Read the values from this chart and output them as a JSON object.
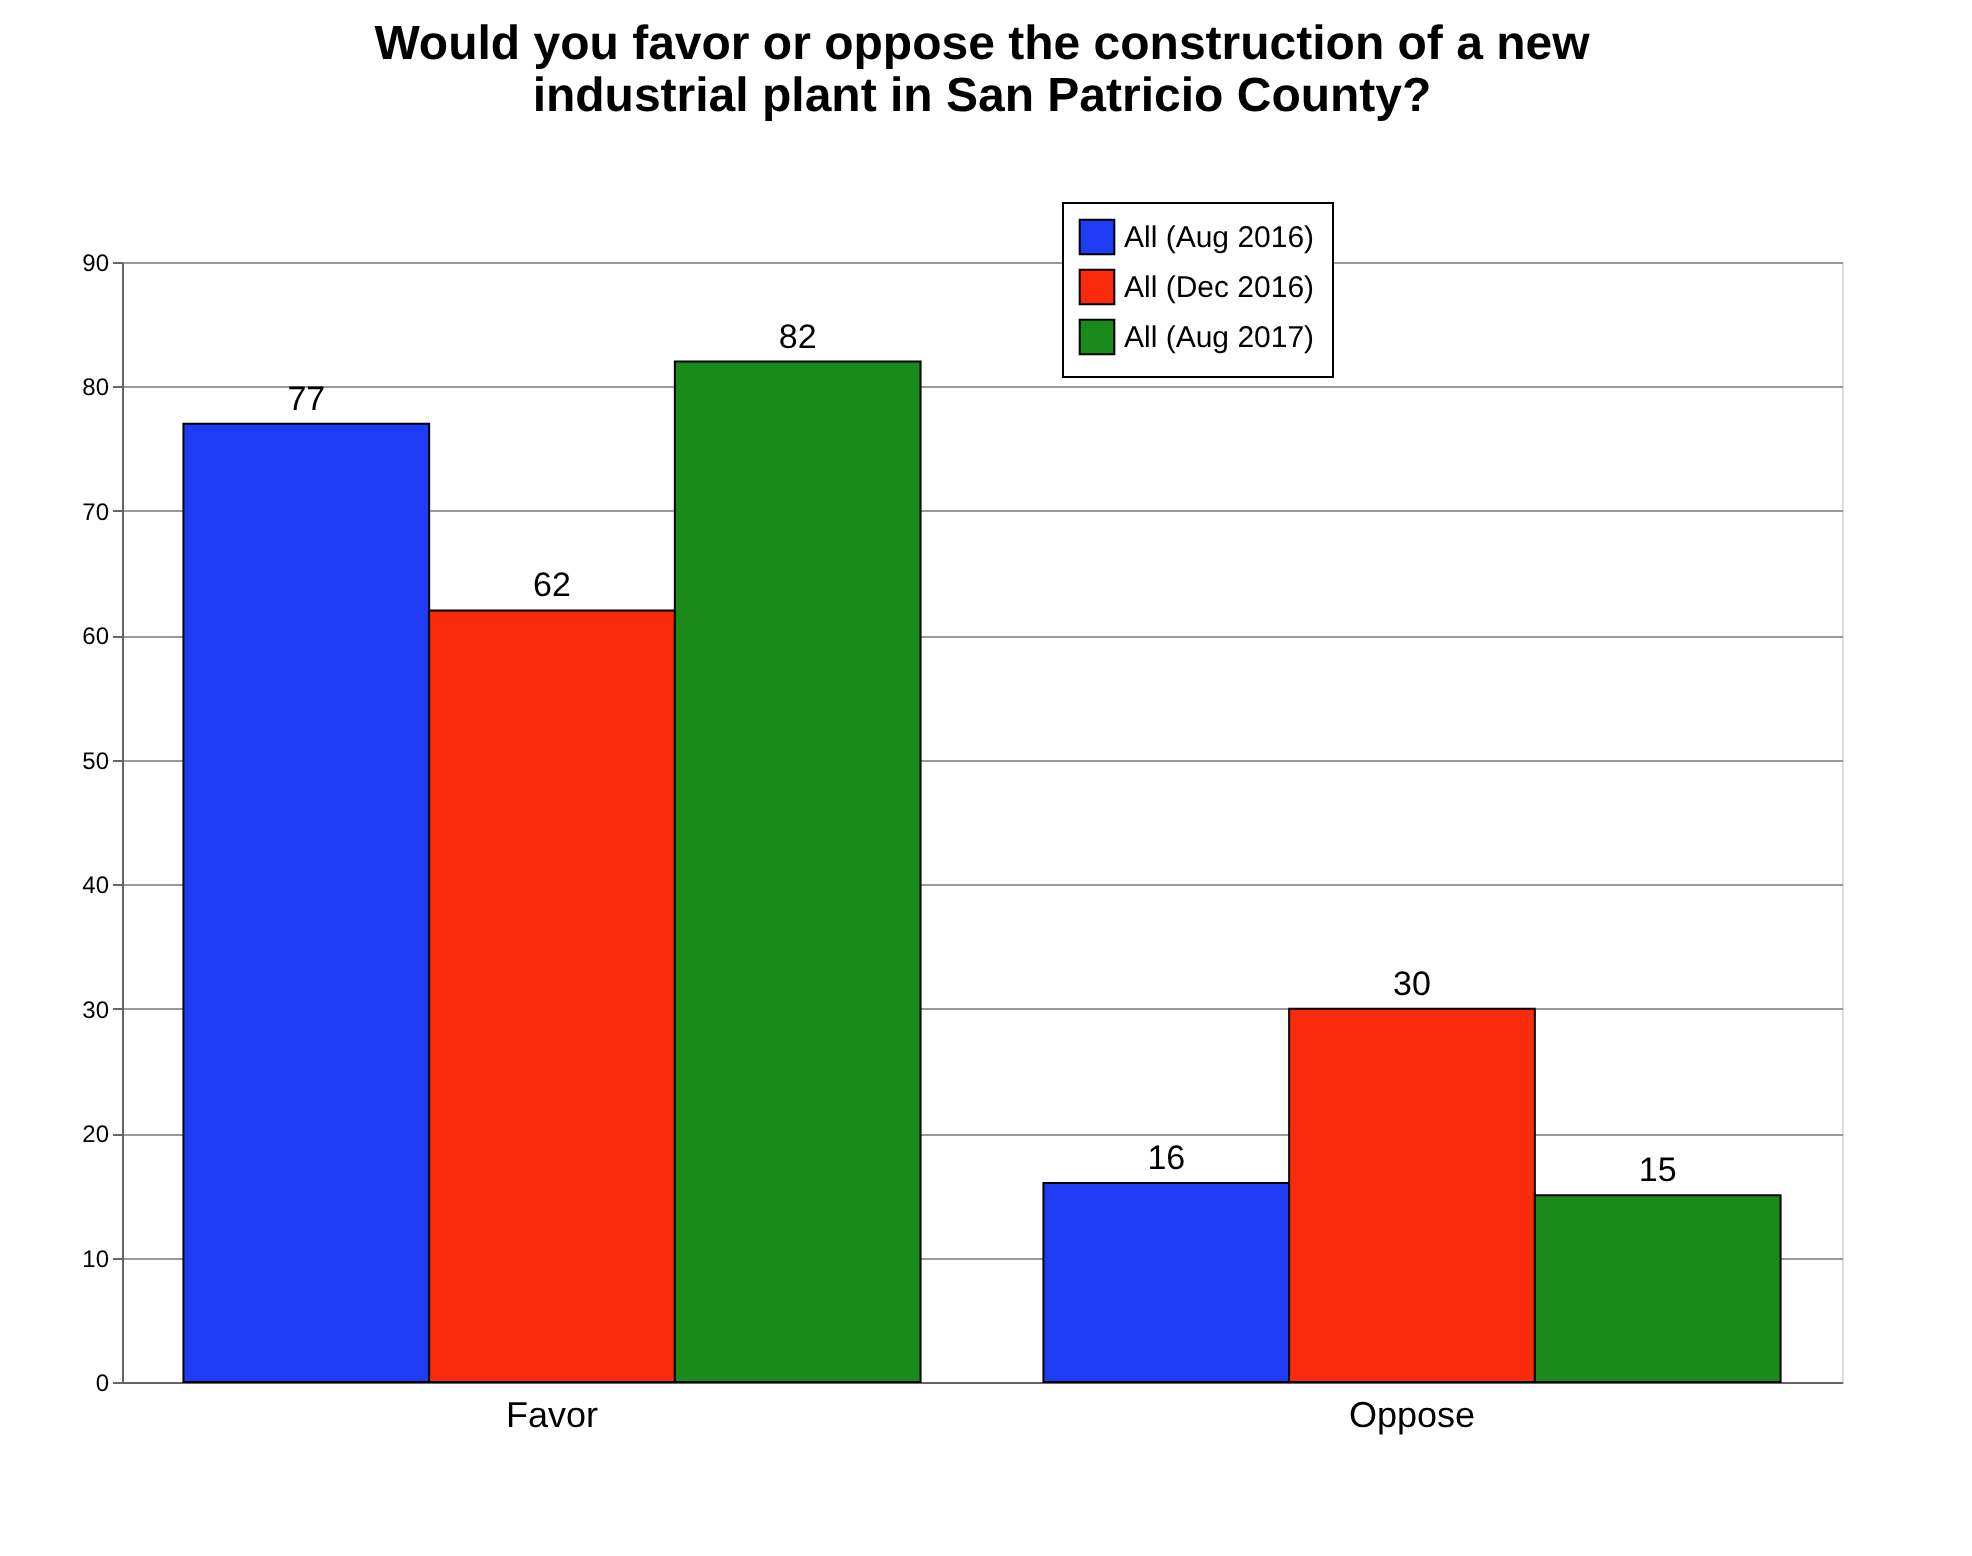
{
  "chart_data": {
    "type": "bar",
    "title": [
      "Would you favor or oppose the construction of a new",
      "industrial plant in San Patricio County?"
    ],
    "categories": [
      "Favor",
      "Oppose"
    ],
    "series": [
      {
        "name": "All (Aug 2016)",
        "color": "#1f3cf5",
        "values": [
          77,
          16
        ]
      },
      {
        "name": "All (Dec 2016)",
        "color": "#fa2a0c",
        "values": [
          62,
          30
        ]
      },
      {
        "name": "All (Aug 2017)",
        "color": "#1a8a1a",
        "values": [
          82,
          15
        ]
      }
    ],
    "ylim": [
      0,
      90
    ],
    "yticks": [
      0,
      10,
      20,
      30,
      40,
      50,
      60,
      70,
      80,
      90
    ],
    "grid": "y",
    "legend": "top right",
    "data_labels": true
  }
}
